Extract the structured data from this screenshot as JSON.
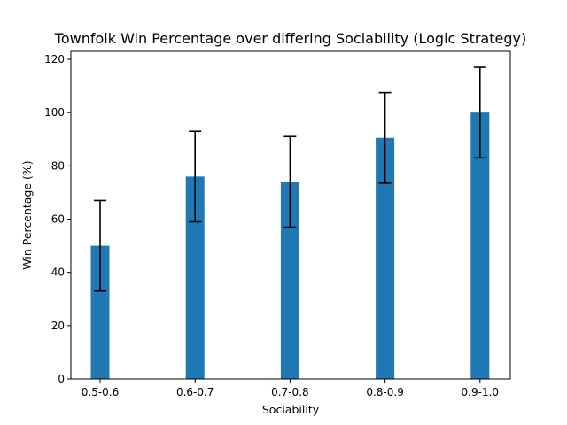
{
  "chart_data": {
    "type": "bar",
    "title": "Townfolk Win Percentage over differing Sociability (Logic Strategy)",
    "xlabel": "Sociability",
    "ylabel": "Win Percentage (%)",
    "categories": [
      "0.5-0.6",
      "0.6-0.7",
      "0.7-0.8",
      "0.8-0.9",
      "0.9-1.0"
    ],
    "values": [
      50,
      76,
      74,
      90.5,
      100
    ],
    "error": [
      17,
      17,
      17,
      17,
      17
    ],
    "ylim": [
      0,
      123
    ],
    "yticks": [
      0,
      20,
      40,
      60,
      80,
      100,
      120
    ],
    "grid": false,
    "legend": "none",
    "bar_color": "#1f77b4",
    "error_color": "#000000"
  }
}
